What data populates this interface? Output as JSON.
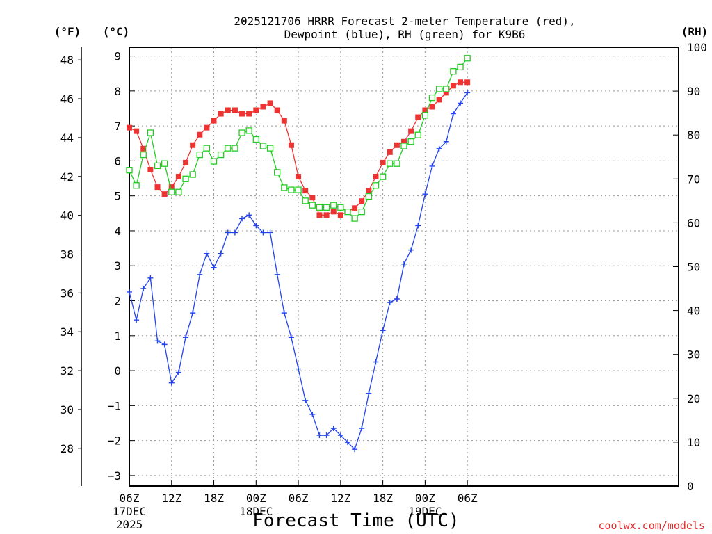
{
  "chart_data": {
    "type": "line",
    "title_line1": "2025121706 HRRR Forecast 2-meter Temperature (red),",
    "title_line2": "Dewpoint (blue), RH (green) for K9B6",
    "unit_left_f": "(°F)",
    "unit_left_c": "(°C)",
    "unit_right": "(RH)",
    "xlabel": "Forecast Time (UTC)",
    "credit": "coolwx.com/models",
    "x_range_hours": [
      0,
      78
    ],
    "celsius_range": [
      -3.3,
      9.25
    ],
    "rh_range": [
      0,
      100
    ],
    "x_ticks": [
      {
        "hour": 0,
        "lines": [
          "06Z",
          "17DEC",
          "2025"
        ]
      },
      {
        "hour": 6,
        "lines": [
          "12Z"
        ]
      },
      {
        "hour": 12,
        "lines": [
          "18Z"
        ]
      },
      {
        "hour": 18,
        "lines": [
          "00Z",
          "18DEC"
        ]
      },
      {
        "hour": 24,
        "lines": [
          "06Z"
        ]
      },
      {
        "hour": 30,
        "lines": [
          "12Z"
        ]
      },
      {
        "hour": 36,
        "lines": [
          "18Z"
        ]
      },
      {
        "hour": 42,
        "lines": [
          "00Z",
          "19DEC"
        ]
      },
      {
        "hour": 48,
        "lines": [
          "06Z"
        ]
      }
    ],
    "celsius_ticks": [
      -3,
      -2,
      -1,
      0,
      1,
      2,
      3,
      4,
      5,
      6,
      7,
      8,
      9
    ],
    "celsius_tick_labels": [
      "−3",
      "−2",
      "−1",
      "0",
      "1",
      "2",
      "3",
      "4",
      "5",
      "6",
      "7",
      "8",
      "9"
    ],
    "fahrenheit_ticks": [
      28,
      30,
      32,
      34,
      36,
      38,
      40,
      42,
      44,
      46,
      48
    ],
    "rh_ticks": [
      0,
      10,
      20,
      30,
      40,
      50,
      60,
      70,
      80,
      90,
      100
    ],
    "series": [
      {
        "name": "Temperature",
        "units": "C",
        "color": "#ee3333",
        "marker": "filled-square",
        "values": [
          6.95,
          6.85,
          6.35,
          5.75,
          5.25,
          5.05,
          5.25,
          5.55,
          5.95,
          6.45,
          6.75,
          6.95,
          7.15,
          7.35,
          7.45,
          7.45,
          7.35,
          7.35,
          7.45,
          7.55,
          7.65,
          7.45,
          7.15,
          6.45,
          5.55,
          5.15,
          4.95,
          4.45,
          4.45,
          4.55,
          4.45,
          4.55,
          4.65,
          4.85,
          5.15,
          5.55,
          5.95,
          6.25,
          6.45,
          6.55,
          6.85,
          7.25,
          7.45,
          7.55,
          7.75,
          7.95,
          8.15,
          8.25,
          8.25
        ]
      },
      {
        "name": "Dewpoint",
        "units": "C",
        "color": "#2244ee",
        "marker": "plus",
        "values": [
          2.25,
          1.45,
          2.35,
          2.65,
          0.85,
          0.75,
          -0.35,
          -0.05,
          0.95,
          1.65,
          2.75,
          3.35,
          2.95,
          3.35,
          3.95,
          3.95,
          4.35,
          4.45,
          4.15,
          3.95,
          3.95,
          2.75,
          1.65,
          0.95,
          0.05,
          -0.85,
          -1.25,
          -1.85,
          -1.85,
          -1.65,
          -1.85,
          -2.05,
          -2.25,
          -1.65,
          -0.65,
          0.25,
          1.15,
          1.95,
          2.05,
          3.05,
          3.45,
          4.15,
          5.05,
          5.85,
          6.35,
          6.55,
          7.35,
          7.65,
          7.95
        ]
      },
      {
        "name": "RH",
        "units": "%",
        "color": "#22cc22",
        "marker": "open-square",
        "values": [
          72,
          68.5,
          75.5,
          80.5,
          73,
          73.5,
          67,
          67,
          70,
          71,
          75.5,
          77,
          74,
          75.5,
          77,
          77,
          80.5,
          81,
          79,
          77.5,
          77,
          71.5,
          68,
          67.5,
          67.5,
          65,
          64,
          63.5,
          63.5,
          64,
          63.5,
          62.5,
          61,
          62.5,
          66,
          68.5,
          70.5,
          73.5,
          73.5,
          77.5,
          78.5,
          80,
          84.5,
          88.5,
          90.5,
          90.5,
          94.5,
          95.5,
          97.5
        ]
      }
    ]
  }
}
